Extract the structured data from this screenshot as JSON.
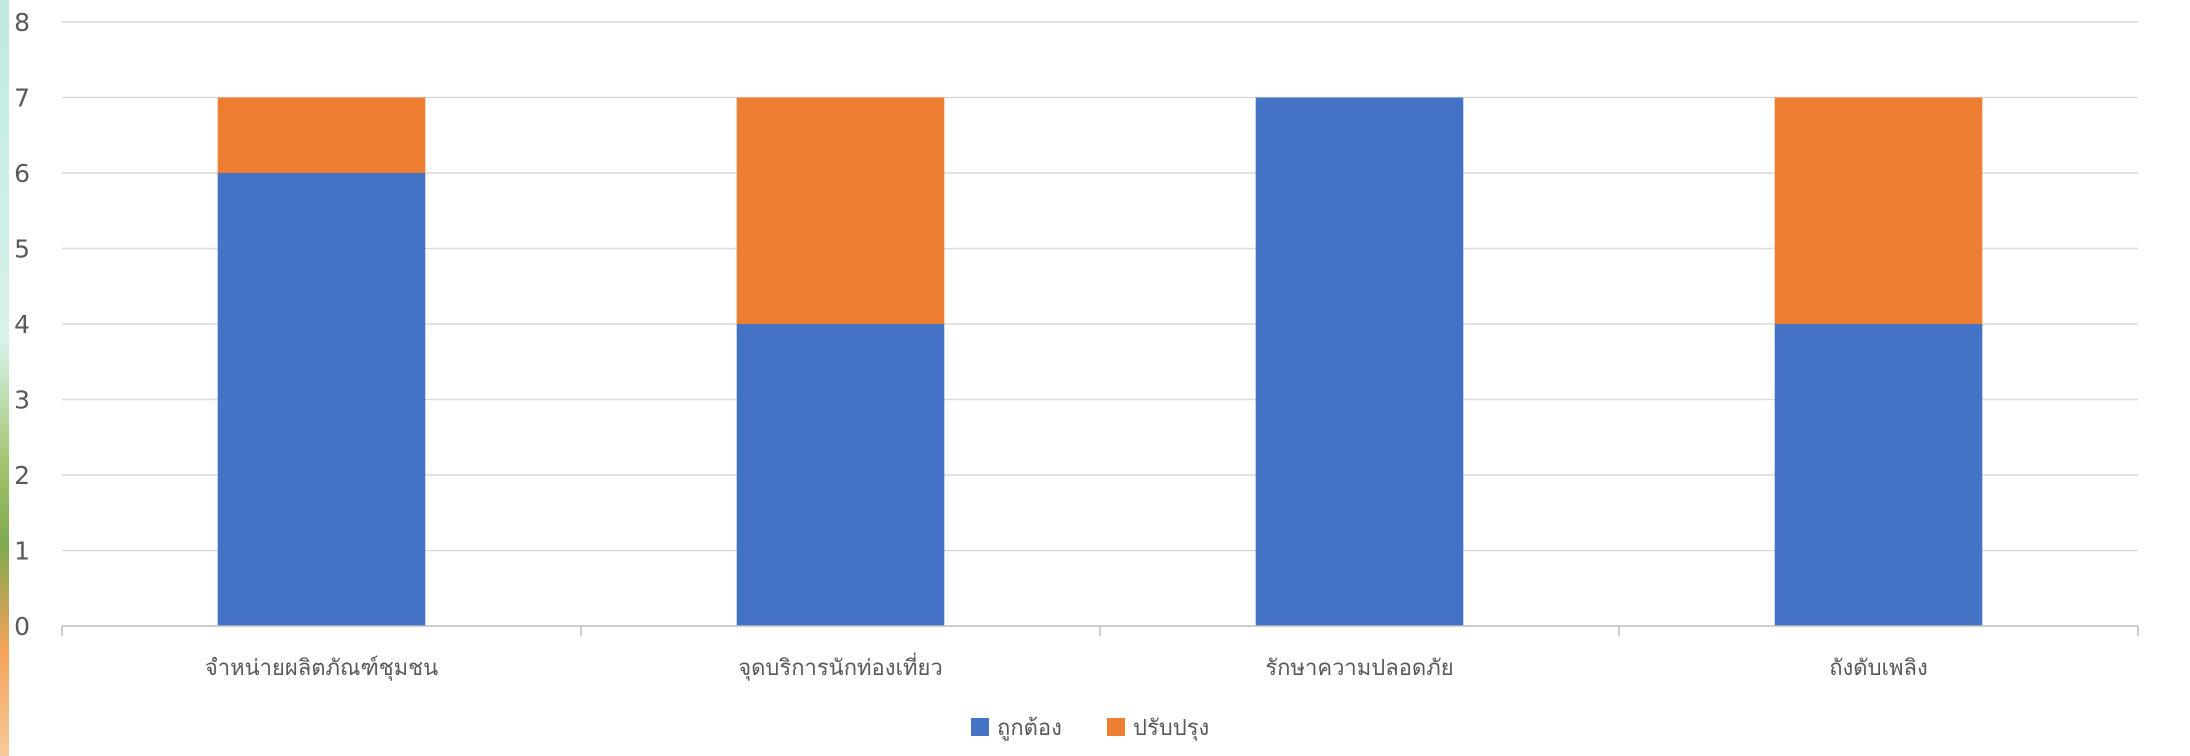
{
  "chart_data": {
    "type": "bar",
    "stacked": true,
    "categories": [
      "จำหน่ายผลิตภัณฑ์ชุมชน",
      "จุดบริการนักท่องเที่ยว",
      "รักษาความปลอดภัย",
      "ถังดับเพลิง"
    ],
    "series": [
      {
        "name": "ถูกต้อง",
        "values": [
          6,
          4,
          7,
          4
        ],
        "color": "#4472C4"
      },
      {
        "name": "ปรับปรุง",
        "values": [
          1,
          3,
          0,
          3
        ],
        "color": "#ED7D31"
      }
    ],
    "title": "",
    "xlabel": "",
    "ylabel": "",
    "ylim": [
      0,
      8
    ],
    "yticks": [
      0,
      1,
      2,
      3,
      4,
      5,
      6,
      7,
      8
    ],
    "grid": true,
    "legend": "bottom"
  }
}
